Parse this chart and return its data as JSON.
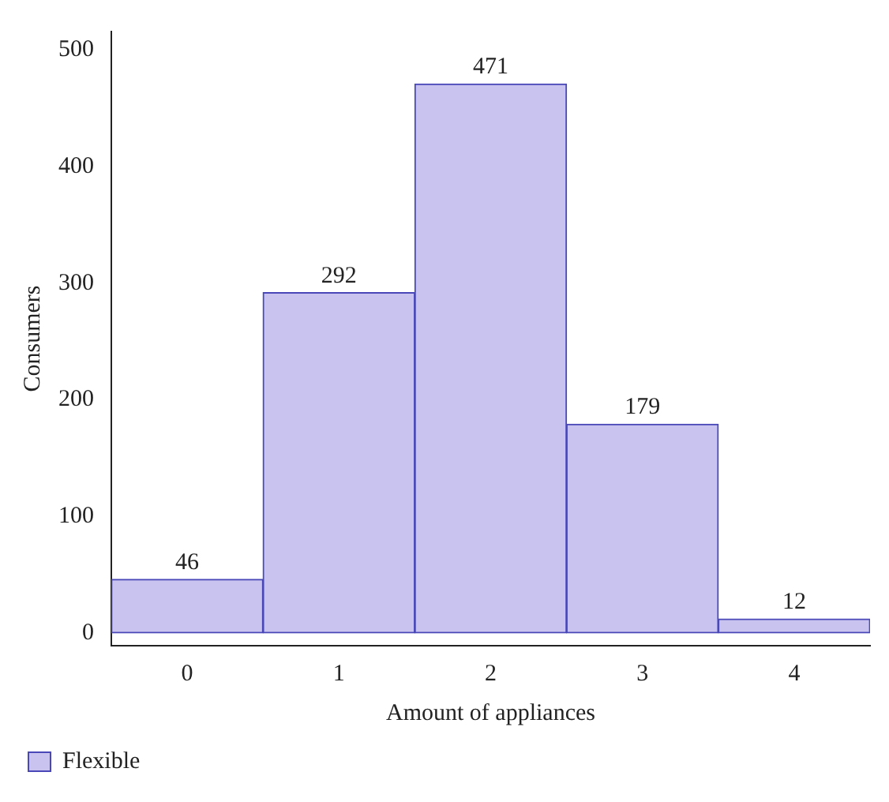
{
  "chart_data": {
    "type": "bar",
    "xlabel": "Amount of appliances",
    "ylabel": "Consumers",
    "categories": [
      "0",
      "1",
      "2",
      "3",
      "4"
    ],
    "series": [
      {
        "name": "Flexible",
        "color": "#c8c4ef",
        "values": [
          46,
          292,
          471,
          179,
          12
        ]
      }
    ],
    "ylim": [
      -11,
      516
    ],
    "yticks": [
      0,
      100,
      200,
      300,
      400,
      500
    ],
    "data_labels": true,
    "grid": false,
    "legend": "bottom left"
  }
}
